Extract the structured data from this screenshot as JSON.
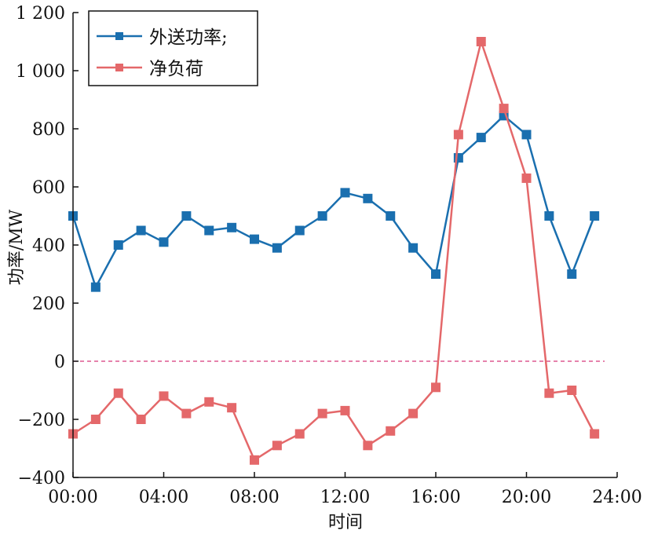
{
  "chart_data": {
    "type": "line",
    "xlabel": "时间",
    "ylabel": "功率/MW",
    "xlim": [
      0,
      24
    ],
    "ylim": [
      -400,
      1200
    ],
    "x_ticks": [
      "00:00",
      "04:00",
      "08:00",
      "12:00",
      "16:00",
      "20:00",
      "24:00"
    ],
    "y_ticks": [
      "1 200",
      "1 000",
      "800",
      "600",
      "400",
      "200",
      "0",
      "−200",
      "−400"
    ],
    "x": [
      0,
      1,
      2,
      3,
      4,
      5,
      6,
      7,
      8,
      9,
      10,
      11,
      12,
      13,
      14,
      15,
      16,
      17,
      18,
      19,
      20,
      21,
      22,
      23
    ],
    "series": [
      {
        "name": "外送功率;",
        "color": "#1a6faf",
        "marker": "square",
        "values": [
          500,
          255,
          400,
          450,
          410,
          500,
          450,
          460,
          420,
          390,
          450,
          500,
          580,
          560,
          500,
          390,
          300,
          700,
          770,
          845,
          780,
          500,
          300,
          500
        ]
      },
      {
        "name": "净负荷",
        "color": "#e4686a",
        "marker": "square",
        "values": [
          -250,
          -200,
          -110,
          -200,
          -120,
          -180,
          -140,
          -160,
          -340,
          -290,
          -250,
          -180,
          -170,
          -290,
          -240,
          -180,
          -90,
          780,
          1100,
          870,
          630,
          -110,
          -100,
          -250
        ]
      }
    ],
    "reference_line": {
      "y": 0,
      "style": "dashed",
      "color": "#d6377a"
    },
    "legend_position": "top-left",
    "grid": false
  }
}
